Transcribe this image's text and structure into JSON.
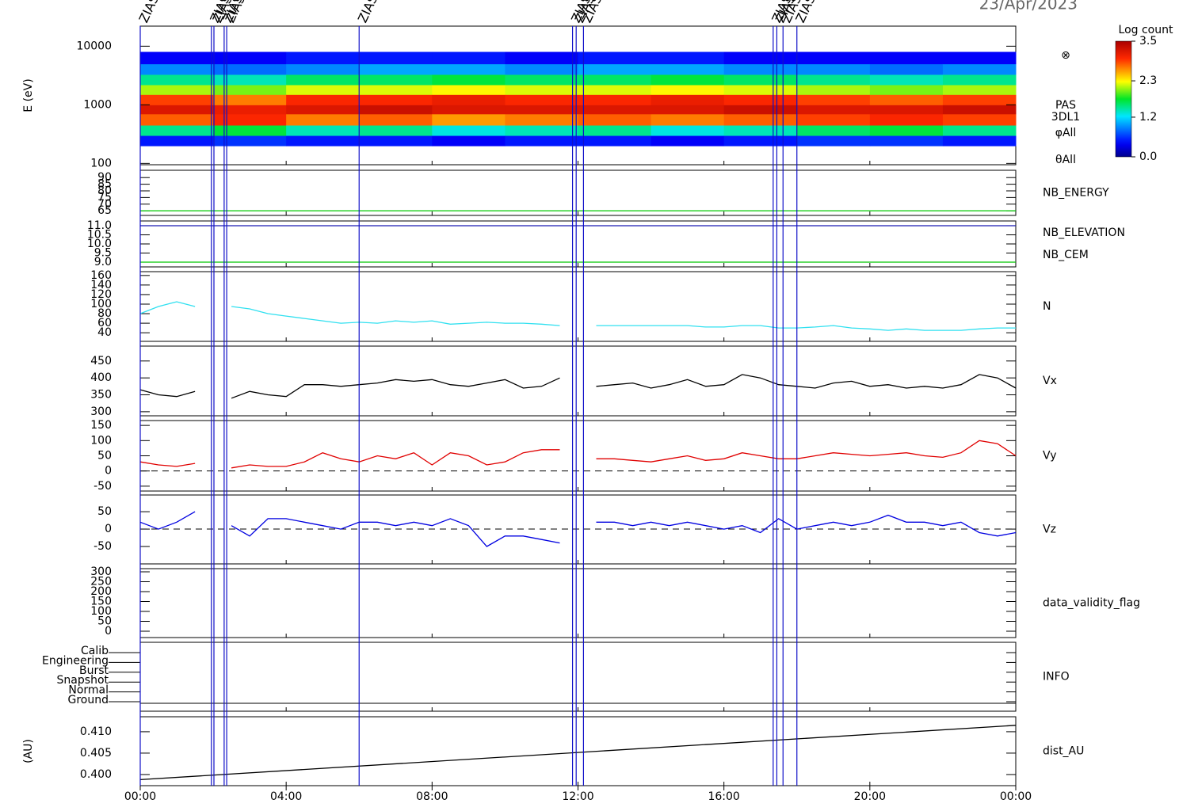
{
  "header": {
    "date": "23/Apr/2023"
  },
  "time_axis": {
    "xlim": [
      0,
      24
    ],
    "xticks": [
      {
        "value": 0,
        "label": "00:00"
      },
      {
        "value": 4,
        "label": "04:00"
      },
      {
        "value": 8,
        "label": "08:00"
      },
      {
        "value": 12,
        "label": "12:00"
      },
      {
        "value": 16,
        "label": "16:00"
      },
      {
        "value": 20,
        "label": "20:00"
      },
      {
        "value": 24,
        "label": "00:00"
      }
    ]
  },
  "events": [
    {
      "x": 0.0,
      "label": "ZIAS"
    },
    {
      "x": 1.95,
      "label": "ZIAS"
    },
    {
      "x": 2.02,
      "label": "ZIAS"
    },
    {
      "x": 2.3,
      "label": "ZIAS"
    },
    {
      "x": 2.37,
      "label": "ZIAS"
    },
    {
      "x": 6.0,
      "label": "ZIAS"
    },
    {
      "x": 11.85,
      "label": "ZIAS"
    },
    {
      "x": 11.95,
      "label": "ZIAS"
    },
    {
      "x": 12.15,
      "label": "ZIAS"
    },
    {
      "x": 17.35,
      "label": "ZIAS"
    },
    {
      "x": 17.45,
      "label": "ZIAS"
    },
    {
      "x": 17.62,
      "label": "ZIAS"
    },
    {
      "x": 18.0,
      "label": "ZIAS"
    }
  ],
  "chart_data": [
    {
      "type": "spectrogram",
      "ylabel": "E (eV)",
      "log": true,
      "ylim": [
        95,
        22000
      ],
      "yticks": [
        100,
        1000,
        10000
      ],
      "side_labels": [
        "⊗",
        "PAS",
        "3DL1",
        "φAll",
        "θAll"
      ],
      "colorbar_label": "Log count",
      "zlim": [
        0,
        3.5
      ],
      "zticks": [
        {
          "value": 0,
          "label": "0.0"
        },
        {
          "value": 1.2,
          "label": "1.2"
        },
        {
          "value": 2.3,
          "label": "2.3"
        },
        {
          "value": 3.5,
          "label": "3.5"
        }
      ],
      "xbins": [
        0,
        2,
        4,
        6,
        8,
        10,
        12,
        14,
        16,
        18,
        20,
        22,
        24
      ],
      "ybins": [
        200,
        300,
        450,
        700,
        1000,
        1500,
        2200,
        3300,
        5000,
        8000
      ],
      "z": [
        [
          0.5,
          1.5,
          2.8,
          3.2,
          2.9,
          2.1,
          1.5,
          0.9,
          0.4
        ],
        [
          0.6,
          1.7,
          3.0,
          3.1,
          2.7,
          2.0,
          1.4,
          0.8,
          0.4
        ],
        [
          0.5,
          1.4,
          2.7,
          3.2,
          3.0,
          2.2,
          1.6,
          0.9,
          0.5
        ],
        [
          0.5,
          1.5,
          2.8,
          3.3,
          3.0,
          2.2,
          1.6,
          1.0,
          0.5
        ],
        [
          0.4,
          1.3,
          2.6,
          3.2,
          3.1,
          2.3,
          1.7,
          1.0,
          0.5
        ],
        [
          0.5,
          1.4,
          2.7,
          3.2,
          3.0,
          2.2,
          1.6,
          0.9,
          0.4
        ],
        [
          0.5,
          1.5,
          2.8,
          3.2,
          3.0,
          2.2,
          1.6,
          1.0,
          0.5
        ],
        [
          0.4,
          1.3,
          2.7,
          3.2,
          3.1,
          2.3,
          1.7,
          1.0,
          0.5
        ],
        [
          0.5,
          1.4,
          2.8,
          3.3,
          3.0,
          2.2,
          1.6,
          0.9,
          0.4
        ],
        [
          0.6,
          1.6,
          2.9,
          3.2,
          2.9,
          2.1,
          1.5,
          0.9,
          0.4
        ],
        [
          0.6,
          1.7,
          3.0,
          3.2,
          2.8,
          2.0,
          1.4,
          0.8,
          0.4
        ],
        [
          0.5,
          1.5,
          2.9,
          3.3,
          2.9,
          2.1,
          1.5,
          0.9,
          0.4
        ]
      ]
    },
    {
      "type": "line",
      "ylim": [
        61.5,
        95.5
      ],
      "yticks": [
        65,
        70,
        75,
        80,
        85,
        90
      ],
      "x": [
        0,
        24
      ],
      "series": [
        {
          "name": "NB_ENERGY",
          "color": "#00c800",
          "values": [
            65,
            65
          ]
        }
      ]
    },
    {
      "type": "line",
      "ylim": [
        8.74,
        11.26
      ],
      "yticks": [
        {
          "value": 9,
          "label": "9.0"
        },
        9.5,
        {
          "value": 10,
          "label": "10.0"
        },
        10.5,
        {
          "value": 11,
          "label": "11.0"
        }
      ],
      "x": [
        0,
        24
      ],
      "series": [
        {
          "name": "NB_ELEVATION",
          "color": "#00c800",
          "values": [
            9,
            9
          ]
        },
        {
          "name": "NB_CEM",
          "color": "#1a1ab4",
          "values": [
            11,
            11
          ]
        }
      ]
    },
    {
      "type": "line",
      "ylim": [
        22,
        168
      ],
      "yticks": [
        40,
        60,
        80,
        100,
        120,
        140,
        160
      ],
      "x": [
        0,
        0.5,
        1,
        1.5,
        2,
        2.5,
        3,
        3.5,
        4,
        4.5,
        5,
        5.5,
        6,
        6.5,
        7,
        7.5,
        8,
        8.5,
        9,
        9.5,
        10,
        10.5,
        11,
        11.5,
        12,
        12.5,
        13,
        13.5,
        14,
        14.5,
        15,
        15.5,
        16,
        16.5,
        17,
        17.5,
        18,
        18.5,
        19,
        19.5,
        20,
        20.5,
        21,
        21.5,
        22,
        22.5,
        23,
        23.5,
        24
      ],
      "series": [
        {
          "name": "N",
          "color": "#30e0f0",
          "values": [
            80,
            95,
            105,
            95,
            null,
            95,
            90,
            80,
            75,
            70,
            65,
            60,
            62,
            60,
            65,
            62,
            65,
            58,
            60,
            62,
            60,
            60,
            58,
            55,
            null,
            55,
            55,
            55,
            55,
            55,
            55,
            52,
            52,
            55,
            55,
            50,
            50,
            52,
            55,
            50,
            48,
            45,
            48,
            45,
            45,
            45,
            48,
            50,
            50
          ]
        }
      ]
    },
    {
      "type": "line",
      "ylim": [
        288,
        494
      ],
      "yticks": [
        300,
        350,
        400,
        450
      ],
      "x": [
        0,
        0.5,
        1,
        1.5,
        2,
        2.5,
        3,
        3.5,
        4,
        4.5,
        5,
        5.5,
        6,
        6.5,
        7,
        7.5,
        8,
        8.5,
        9,
        9.5,
        10,
        10.5,
        11,
        11.5,
        12,
        12.5,
        13,
        13.5,
        14,
        14.5,
        15,
        15.5,
        16,
        16.5,
        17,
        17.5,
        18,
        18.5,
        19,
        19.5,
        20,
        20.5,
        21,
        21.5,
        22,
        22.5,
        23,
        23.5,
        24
      ],
      "series": [
        {
          "name": "Vx",
          "color": "#000000",
          "values": [
            365,
            350,
            345,
            360,
            null,
            340,
            360,
            350,
            345,
            380,
            380,
            375,
            380,
            385,
            395,
            390,
            395,
            380,
            375,
            385,
            395,
            370,
            375,
            400,
            null,
            375,
            380,
            385,
            370,
            380,
            395,
            375,
            380,
            410,
            400,
            380,
            375,
            370,
            385,
            390,
            375,
            380,
            370,
            375,
            370,
            380,
            410,
            400,
            370
          ]
        }
      ]
    },
    {
      "type": "line",
      "ylim": [
        -66,
        166
      ],
      "yticks": [
        -50,
        0,
        50,
        100,
        150
      ],
      "hlines": [
        0
      ],
      "x": [
        0,
        0.5,
        1,
        1.5,
        2,
        2.5,
        3,
        3.5,
        4,
        4.5,
        5,
        5.5,
        6,
        6.5,
        7,
        7.5,
        8,
        8.5,
        9,
        9.5,
        10,
        10.5,
        11,
        11.5,
        12,
        12.5,
        13,
        13.5,
        14,
        14.5,
        15,
        15.5,
        16,
        16.5,
        17,
        17.5,
        18,
        18.5,
        19,
        19.5,
        20,
        20.5,
        21,
        21.5,
        22,
        22.5,
        23,
        23.5,
        24
      ],
      "series": [
        {
          "name": "Vy",
          "color": "#e00000",
          "values": [
            30,
            20,
            15,
            25,
            null,
            10,
            20,
            15,
            15,
            30,
            60,
            40,
            30,
            50,
            40,
            60,
            20,
            60,
            50,
            20,
            30,
            60,
            70,
            70,
            null,
            40,
            40,
            35,
            30,
            40,
            50,
            35,
            40,
            60,
            50,
            40,
            40,
            50,
            60,
            55,
            50,
            55,
            60,
            50,
            45,
            60,
            100,
            90,
            50
          ]
        }
      ]
    },
    {
      "type": "line",
      "ylim": [
        -100,
        98
      ],
      "yticks": [
        -50,
        0,
        50
      ],
      "hlines": [
        0
      ],
      "x": [
        0,
        0.5,
        1,
        1.5,
        2,
        2.5,
        3,
        3.5,
        4,
        4.5,
        5,
        5.5,
        6,
        6.5,
        7,
        7.5,
        8,
        8.5,
        9,
        9.5,
        10,
        10.5,
        11,
        11.5,
        12,
        12.5,
        13,
        13.5,
        14,
        14.5,
        15,
        15.5,
        16,
        16.5,
        17,
        17.5,
        18,
        18.5,
        19,
        19.5,
        20,
        20.5,
        21,
        21.5,
        22,
        22.5,
        23,
        23.5,
        24
      ],
      "series": [
        {
          "name": "Vz",
          "color": "#0000e0",
          "values": [
            20,
            0,
            20,
            50,
            null,
            10,
            -20,
            30,
            30,
            20,
            10,
            0,
            20,
            20,
            10,
            20,
            10,
            30,
            10,
            -50,
            -20,
            -20,
            -30,
            -40,
            null,
            20,
            20,
            10,
            20,
            10,
            20,
            10,
            0,
            10,
            -10,
            30,
            0,
            10,
            20,
            10,
            20,
            40,
            20,
            20,
            10,
            20,
            -10,
            -20,
            -10
          ]
        }
      ]
    },
    {
      "type": "flag",
      "label": "data_validity_flag",
      "ylim": [
        -32,
        316
      ],
      "yticks": [
        0,
        50,
        100,
        150,
        200,
        250,
        300
      ]
    },
    {
      "type": "category",
      "label": "INFO",
      "categories": [
        "Calib",
        "Engineering",
        "Burst",
        "Snapshot",
        "Normal",
        "Ground"
      ]
    },
    {
      "type": "line",
      "ylabel": "(AU)",
      "ylim": [
        0.3974,
        0.4135
      ],
      "yticks": [
        {
          "value": 0.4,
          "label": "0.400"
        },
        {
          "value": 0.405,
          "label": "0.405"
        },
        {
          "value": 0.41,
          "label": "0.410"
        }
      ],
      "x": [
        0,
        24
      ],
      "series": [
        {
          "name": "dist_AU",
          "color": "#000000",
          "values": [
            0.3988,
            0.4115
          ]
        }
      ]
    }
  ]
}
